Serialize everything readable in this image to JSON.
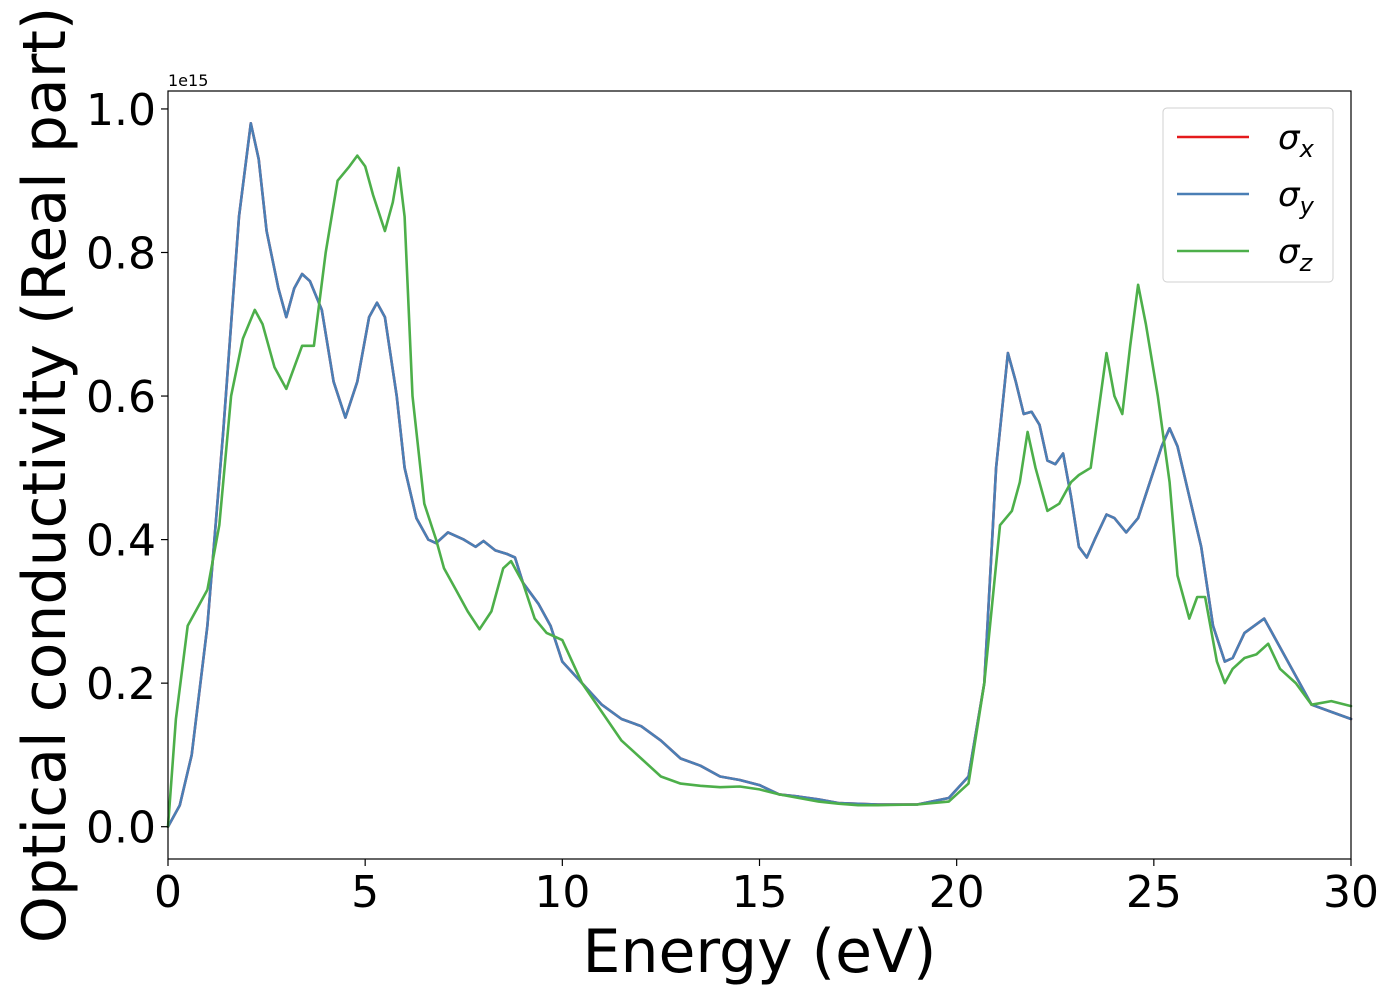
{
  "chart_data": {
    "type": "line",
    "title": "",
    "xlabel": "Energy (eV)",
    "ylabel": "Optical conductivity (Real part)",
    "y_offset_text": "1e15",
    "xlim": [
      0,
      30
    ],
    "ylim": [
      -0.045,
      1.025
    ],
    "x_ticks": [
      0,
      5,
      10,
      15,
      20,
      25,
      30
    ],
    "x_tick_labels": [
      "0",
      "5",
      "10",
      "15",
      "20",
      "25",
      "30"
    ],
    "y_ticks": [
      0.0,
      0.2,
      0.4,
      0.6,
      0.8,
      1.0
    ],
    "y_tick_labels": [
      "0.0",
      "0.2",
      "0.4",
      "0.6",
      "0.8",
      "1.0"
    ],
    "grid": false,
    "legend_position": "top-right",
    "series": [
      {
        "name": "σx",
        "base": "σ",
        "sub": "x",
        "color": "#e41a1c",
        "points": [
          [
            0,
            0
          ],
          [
            0.3,
            0.03
          ],
          [
            0.6,
            0.1
          ],
          [
            1.0,
            0.28
          ],
          [
            1.4,
            0.55
          ],
          [
            1.8,
            0.85
          ],
          [
            2.1,
            0.98
          ],
          [
            2.3,
            0.93
          ],
          [
            2.5,
            0.83
          ],
          [
            2.8,
            0.75
          ],
          [
            3.0,
            0.71
          ],
          [
            3.2,
            0.75
          ],
          [
            3.4,
            0.77
          ],
          [
            3.6,
            0.76
          ],
          [
            3.9,
            0.72
          ],
          [
            4.2,
            0.62
          ],
          [
            4.5,
            0.57
          ],
          [
            4.8,
            0.62
          ],
          [
            5.1,
            0.71
          ],
          [
            5.3,
            0.73
          ],
          [
            5.5,
            0.71
          ],
          [
            5.8,
            0.6
          ],
          [
            6.0,
            0.5
          ],
          [
            6.3,
            0.43
          ],
          [
            6.6,
            0.4
          ],
          [
            6.8,
            0.395
          ],
          [
            7.1,
            0.41
          ],
          [
            7.5,
            0.4
          ],
          [
            7.8,
            0.39
          ],
          [
            8.0,
            0.398
          ],
          [
            8.3,
            0.385
          ],
          [
            8.6,
            0.38
          ],
          [
            8.8,
            0.375
          ],
          [
            9.0,
            0.34
          ],
          [
            9.4,
            0.31
          ],
          [
            9.7,
            0.28
          ],
          [
            10.0,
            0.23
          ],
          [
            10.5,
            0.2
          ],
          [
            11.0,
            0.17
          ],
          [
            11.5,
            0.15
          ],
          [
            12.0,
            0.14
          ],
          [
            12.5,
            0.12
          ],
          [
            13.0,
            0.095
          ],
          [
            13.5,
            0.085
          ],
          [
            14.0,
            0.07
          ],
          [
            14.5,
            0.065
          ],
          [
            15.0,
            0.058
          ],
          [
            15.5,
            0.045
          ],
          [
            16.0,
            0.042
          ],
          [
            16.5,
            0.038
          ],
          [
            17.0,
            0.033
          ],
          [
            18.0,
            0.031
          ],
          [
            19.0,
            0.031
          ],
          [
            19.8,
            0.04
          ],
          [
            20.3,
            0.07
          ],
          [
            20.7,
            0.2
          ],
          [
            21.0,
            0.5
          ],
          [
            21.3,
            0.66
          ],
          [
            21.5,
            0.62
          ],
          [
            21.7,
            0.575
          ],
          [
            21.9,
            0.578
          ],
          [
            22.1,
            0.56
          ],
          [
            22.3,
            0.51
          ],
          [
            22.5,
            0.505
          ],
          [
            22.7,
            0.52
          ],
          [
            22.9,
            0.46
          ],
          [
            23.1,
            0.39
          ],
          [
            23.3,
            0.375
          ],
          [
            23.5,
            0.4
          ],
          [
            23.8,
            0.435
          ],
          [
            24.0,
            0.43
          ],
          [
            24.3,
            0.41
          ],
          [
            24.6,
            0.43
          ],
          [
            24.9,
            0.48
          ],
          [
            25.2,
            0.53
          ],
          [
            25.4,
            0.555
          ],
          [
            25.6,
            0.53
          ],
          [
            25.9,
            0.46
          ],
          [
            26.2,
            0.39
          ],
          [
            26.5,
            0.28
          ],
          [
            26.8,
            0.23
          ],
          [
            27.0,
            0.235
          ],
          [
            27.3,
            0.27
          ],
          [
            27.8,
            0.29
          ],
          [
            28.0,
            0.27
          ],
          [
            28.5,
            0.22
          ],
          [
            29.0,
            0.17
          ],
          [
            29.5,
            0.16
          ],
          [
            30.0,
            0.15
          ]
        ]
      },
      {
        "name": "σy",
        "base": "σ",
        "sub": "y",
        "color": "#4a7fb5",
        "points": [
          [
            0,
            0
          ],
          [
            0.3,
            0.03
          ],
          [
            0.6,
            0.1
          ],
          [
            1.0,
            0.28
          ],
          [
            1.4,
            0.55
          ],
          [
            1.8,
            0.85
          ],
          [
            2.1,
            0.98
          ],
          [
            2.3,
            0.93
          ],
          [
            2.5,
            0.83
          ],
          [
            2.8,
            0.75
          ],
          [
            3.0,
            0.71
          ],
          [
            3.2,
            0.75
          ],
          [
            3.4,
            0.77
          ],
          [
            3.6,
            0.76
          ],
          [
            3.9,
            0.72
          ],
          [
            4.2,
            0.62
          ],
          [
            4.5,
            0.57
          ],
          [
            4.8,
            0.62
          ],
          [
            5.1,
            0.71
          ],
          [
            5.3,
            0.73
          ],
          [
            5.5,
            0.71
          ],
          [
            5.8,
            0.6
          ],
          [
            6.0,
            0.5
          ],
          [
            6.3,
            0.43
          ],
          [
            6.6,
            0.4
          ],
          [
            6.8,
            0.395
          ],
          [
            7.1,
            0.41
          ],
          [
            7.5,
            0.4
          ],
          [
            7.8,
            0.39
          ],
          [
            8.0,
            0.398
          ],
          [
            8.3,
            0.385
          ],
          [
            8.6,
            0.38
          ],
          [
            8.8,
            0.375
          ],
          [
            9.0,
            0.34
          ],
          [
            9.4,
            0.31
          ],
          [
            9.7,
            0.28
          ],
          [
            10.0,
            0.23
          ],
          [
            10.5,
            0.2
          ],
          [
            11.0,
            0.17
          ],
          [
            11.5,
            0.15
          ],
          [
            12.0,
            0.14
          ],
          [
            12.5,
            0.12
          ],
          [
            13.0,
            0.095
          ],
          [
            13.5,
            0.085
          ],
          [
            14.0,
            0.07
          ],
          [
            14.5,
            0.065
          ],
          [
            15.0,
            0.058
          ],
          [
            15.5,
            0.045
          ],
          [
            16.0,
            0.042
          ],
          [
            16.5,
            0.038
          ],
          [
            17.0,
            0.033
          ],
          [
            18.0,
            0.031
          ],
          [
            19.0,
            0.031
          ],
          [
            19.8,
            0.04
          ],
          [
            20.3,
            0.07
          ],
          [
            20.7,
            0.2
          ],
          [
            21.0,
            0.5
          ],
          [
            21.3,
            0.66
          ],
          [
            21.5,
            0.62
          ],
          [
            21.7,
            0.575
          ],
          [
            21.9,
            0.578
          ],
          [
            22.1,
            0.56
          ],
          [
            22.3,
            0.51
          ],
          [
            22.5,
            0.505
          ],
          [
            22.7,
            0.52
          ],
          [
            22.9,
            0.46
          ],
          [
            23.1,
            0.39
          ],
          [
            23.3,
            0.375
          ],
          [
            23.5,
            0.4
          ],
          [
            23.8,
            0.435
          ],
          [
            24.0,
            0.43
          ],
          [
            24.3,
            0.41
          ],
          [
            24.6,
            0.43
          ],
          [
            24.9,
            0.48
          ],
          [
            25.2,
            0.53
          ],
          [
            25.4,
            0.555
          ],
          [
            25.6,
            0.53
          ],
          [
            25.9,
            0.46
          ],
          [
            26.2,
            0.39
          ],
          [
            26.5,
            0.28
          ],
          [
            26.8,
            0.23
          ],
          [
            27.0,
            0.235
          ],
          [
            27.3,
            0.27
          ],
          [
            27.8,
            0.29
          ],
          [
            28.0,
            0.27
          ],
          [
            28.5,
            0.22
          ],
          [
            29.0,
            0.17
          ],
          [
            29.5,
            0.16
          ],
          [
            30.0,
            0.15
          ]
        ]
      },
      {
        "name": "σz",
        "base": "σ",
        "sub": "z",
        "color": "#4daf4a",
        "points": [
          [
            0,
            0
          ],
          [
            0.2,
            0.15
          ],
          [
            0.5,
            0.28
          ],
          [
            0.8,
            0.31
          ],
          [
            1.0,
            0.33
          ],
          [
            1.3,
            0.42
          ],
          [
            1.6,
            0.6
          ],
          [
            1.9,
            0.68
          ],
          [
            2.2,
            0.72
          ],
          [
            2.4,
            0.7
          ],
          [
            2.7,
            0.64
          ],
          [
            3.0,
            0.61
          ],
          [
            3.2,
            0.64
          ],
          [
            3.4,
            0.67
          ],
          [
            3.7,
            0.67
          ],
          [
            4.0,
            0.8
          ],
          [
            4.3,
            0.9
          ],
          [
            4.6,
            0.92
          ],
          [
            4.8,
            0.935
          ],
          [
            5.0,
            0.92
          ],
          [
            5.2,
            0.88
          ],
          [
            5.5,
            0.83
          ],
          [
            5.7,
            0.87
          ],
          [
            5.85,
            0.918
          ],
          [
            6.0,
            0.85
          ],
          [
            6.2,
            0.6
          ],
          [
            6.5,
            0.45
          ],
          [
            6.8,
            0.4
          ],
          [
            7.0,
            0.36
          ],
          [
            7.3,
            0.33
          ],
          [
            7.6,
            0.3
          ],
          [
            7.9,
            0.275
          ],
          [
            8.2,
            0.3
          ],
          [
            8.5,
            0.36
          ],
          [
            8.7,
            0.37
          ],
          [
            9.0,
            0.34
          ],
          [
            9.3,
            0.29
          ],
          [
            9.6,
            0.27
          ],
          [
            10.0,
            0.26
          ],
          [
            10.5,
            0.2
          ],
          [
            11.0,
            0.16
          ],
          [
            11.5,
            0.12
          ],
          [
            12.0,
            0.095
          ],
          [
            12.5,
            0.07
          ],
          [
            13.0,
            0.06
          ],
          [
            13.5,
            0.057
          ],
          [
            14.0,
            0.055
          ],
          [
            14.5,
            0.056
          ],
          [
            15.0,
            0.052
          ],
          [
            15.5,
            0.045
          ],
          [
            16.0,
            0.04
          ],
          [
            16.5,
            0.035
          ],
          [
            17.0,
            0.032
          ],
          [
            17.5,
            0.03
          ],
          [
            18.0,
            0.03
          ],
          [
            19.0,
            0.031
          ],
          [
            19.8,
            0.035
          ],
          [
            20.3,
            0.06
          ],
          [
            20.7,
            0.2
          ],
          [
            21.1,
            0.42
          ],
          [
            21.4,
            0.44
          ],
          [
            21.6,
            0.48
          ],
          [
            21.8,
            0.55
          ],
          [
            22.0,
            0.5
          ],
          [
            22.3,
            0.44
          ],
          [
            22.6,
            0.45
          ],
          [
            22.9,
            0.48
          ],
          [
            23.1,
            0.49
          ],
          [
            23.4,
            0.5
          ],
          [
            23.6,
            0.58
          ],
          [
            23.8,
            0.66
          ],
          [
            24.0,
            0.6
          ],
          [
            24.2,
            0.575
          ],
          [
            24.4,
            0.67
          ],
          [
            24.6,
            0.755
          ],
          [
            24.8,
            0.7
          ],
          [
            25.1,
            0.6
          ],
          [
            25.4,
            0.48
          ],
          [
            25.6,
            0.35
          ],
          [
            25.9,
            0.29
          ],
          [
            26.1,
            0.32
          ],
          [
            26.3,
            0.32
          ],
          [
            26.6,
            0.23
          ],
          [
            26.8,
            0.2
          ],
          [
            27.0,
            0.22
          ],
          [
            27.3,
            0.235
          ],
          [
            27.6,
            0.24
          ],
          [
            27.9,
            0.255
          ],
          [
            28.2,
            0.22
          ],
          [
            28.6,
            0.2
          ],
          [
            29.0,
            0.17
          ],
          [
            29.5,
            0.175
          ],
          [
            30.0,
            0.168
          ]
        ]
      }
    ]
  }
}
